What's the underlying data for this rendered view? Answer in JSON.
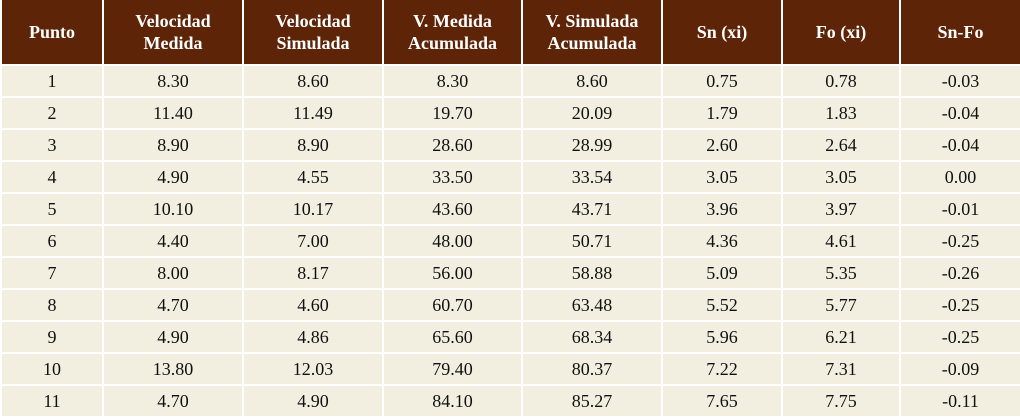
{
  "table": {
    "headers": [
      "Punto",
      "Velocidad\nMedida",
      "Velocidad\nSimulada",
      "V. Medida\nAcumulada",
      "V. Simulada\nAcumulada",
      "Sn (xi)",
      "Fo (xi)",
      "Sn-Fo"
    ],
    "rows": [
      [
        "1",
        "8.30",
        "8.60",
        "8.30",
        "8.60",
        "0.75",
        "0.78",
        "-0.03"
      ],
      [
        "2",
        "11.40",
        "11.49",
        "19.70",
        "20.09",
        "1.79",
        "1.83",
        "-0.04"
      ],
      [
        "3",
        "8.90",
        "8.90",
        "28.60",
        "28.99",
        "2.60",
        "2.64",
        "-0.04"
      ],
      [
        "4",
        "4.90",
        "4.55",
        "33.50",
        "33.54",
        "3.05",
        "3.05",
        "0.00"
      ],
      [
        "5",
        "10.10",
        "10.17",
        "43.60",
        "43.71",
        "3.96",
        "3.97",
        "-0.01"
      ],
      [
        "6",
        "4.40",
        "7.00",
        "48.00",
        "50.71",
        "4.36",
        "4.61",
        "-0.25"
      ],
      [
        "7",
        "8.00",
        "8.17",
        "56.00",
        "58.88",
        "5.09",
        "5.35",
        "-0.26"
      ],
      [
        "8",
        "4.70",
        "4.60",
        "60.70",
        "63.48",
        "5.52",
        "5.77",
        "-0.25"
      ],
      [
        "9",
        "4.90",
        "4.86",
        "65.60",
        "68.34",
        "5.96",
        "6.21",
        "-0.25"
      ],
      [
        "10",
        "13.80",
        "12.03",
        "79.40",
        "80.37",
        "7.22",
        "7.31",
        "-0.09"
      ],
      [
        "11",
        "4.70",
        "4.90",
        "84.10",
        "85.27",
        "7.65",
        "7.75",
        "-0.11"
      ]
    ]
  },
  "colors": {
    "header_background": "#5e2407",
    "row_background": "#f2efe1"
  }
}
